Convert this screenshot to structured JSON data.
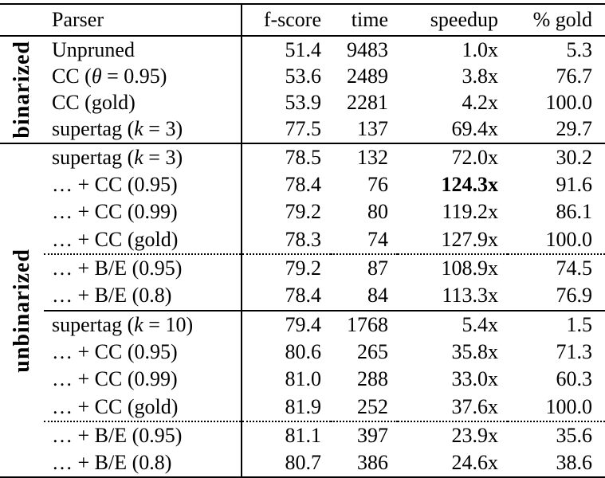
{
  "table": {
    "columns": [
      "Parser",
      "f-score",
      "time",
      "speedup",
      "% gold"
    ],
    "colors": {
      "text": "#000000",
      "background": "#ffffff",
      "rule": "#000000"
    },
    "groups": [
      {
        "label": "binarized",
        "rows": [
          {
            "parser": [
              {
                "t": "Unpruned"
              }
            ],
            "fscore": "51.4",
            "time": "9483",
            "speedup": "1.0x",
            "gold": "5.3"
          },
          {
            "parser": [
              {
                "t": "CC ("
              },
              {
                "t": "θ",
                "i": true
              },
              {
                "t": " = 0.95)"
              }
            ],
            "fscore": "53.6",
            "time": "2489",
            "speedup": "3.8x",
            "gold": "76.7"
          },
          {
            "parser": [
              {
                "t": "CC (gold)"
              }
            ],
            "fscore": "53.9",
            "time": "2281",
            "speedup": "4.2x",
            "gold": "100.0"
          },
          {
            "parser": [
              {
                "t": "supertag ("
              },
              {
                "t": "k",
                "i": true
              },
              {
                "t": " = 3)"
              }
            ],
            "fscore": "77.5",
            "time": "137",
            "speedup": "69.4x",
            "gold": "29.7"
          }
        ]
      },
      {
        "label": "unbinarized",
        "rows": [
          {
            "parser": [
              {
                "t": "supertag ("
              },
              {
                "t": "k",
                "i": true
              },
              {
                "t": " = 3)"
              }
            ],
            "fscore": "78.5",
            "time": "132",
            "speedup": "72.0x",
            "gold": "30.2"
          },
          {
            "parser": [
              {
                "t": "… + CC (0.95)"
              }
            ],
            "fscore": "78.4",
            "time": "76",
            "speedup": "124.3x",
            "gold": "91.6",
            "bold_speedup": true
          },
          {
            "parser": [
              {
                "t": "… + CC (0.99)"
              }
            ],
            "fscore": "79.2",
            "time": "80",
            "speedup": "119.2x",
            "gold": "86.1"
          },
          {
            "parser": [
              {
                "t": "… + CC (gold)"
              }
            ],
            "fscore": "78.3",
            "time": "74",
            "speedup": "127.9x",
            "gold": "100.0"
          },
          {
            "parser": [
              {
                "t": "… + B/E (0.95)"
              }
            ],
            "fscore": "79.2",
            "time": "87",
            "speedup": "108.9x",
            "gold": "74.5",
            "rule_above": "dotted"
          },
          {
            "parser": [
              {
                "t": "… + B/E (0.8)"
              }
            ],
            "fscore": "78.4",
            "time": "84",
            "speedup": "113.3x",
            "gold": "76.9"
          },
          {
            "parser": [
              {
                "t": "supertag ("
              },
              {
                "t": "k",
                "i": true
              },
              {
                "t": " = 10)"
              }
            ],
            "fscore": "79.4",
            "time": "1768",
            "speedup": "5.4x",
            "gold": "1.5",
            "rule_above": "solid"
          },
          {
            "parser": [
              {
                "t": "… + CC (0.95)"
              }
            ],
            "fscore": "80.6",
            "time": "265",
            "speedup": "35.8x",
            "gold": "71.3"
          },
          {
            "parser": [
              {
                "t": "… + CC (0.99)"
              }
            ],
            "fscore": "81.0",
            "time": "288",
            "speedup": "33.0x",
            "gold": "60.3"
          },
          {
            "parser": [
              {
                "t": "… + CC (gold)"
              }
            ],
            "fscore": "81.9",
            "time": "252",
            "speedup": "37.6x",
            "gold": "100.0"
          },
          {
            "parser": [
              {
                "t": "… + B/E (0.95)"
              }
            ],
            "fscore": "81.1",
            "time": "397",
            "speedup": "23.9x",
            "gold": "35.6",
            "rule_above": "dotted"
          },
          {
            "parser": [
              {
                "t": "… + B/E (0.8)"
              }
            ],
            "fscore": "80.7",
            "time": "386",
            "speedup": "24.6x",
            "gold": "38.6"
          }
        ]
      }
    ]
  }
}
